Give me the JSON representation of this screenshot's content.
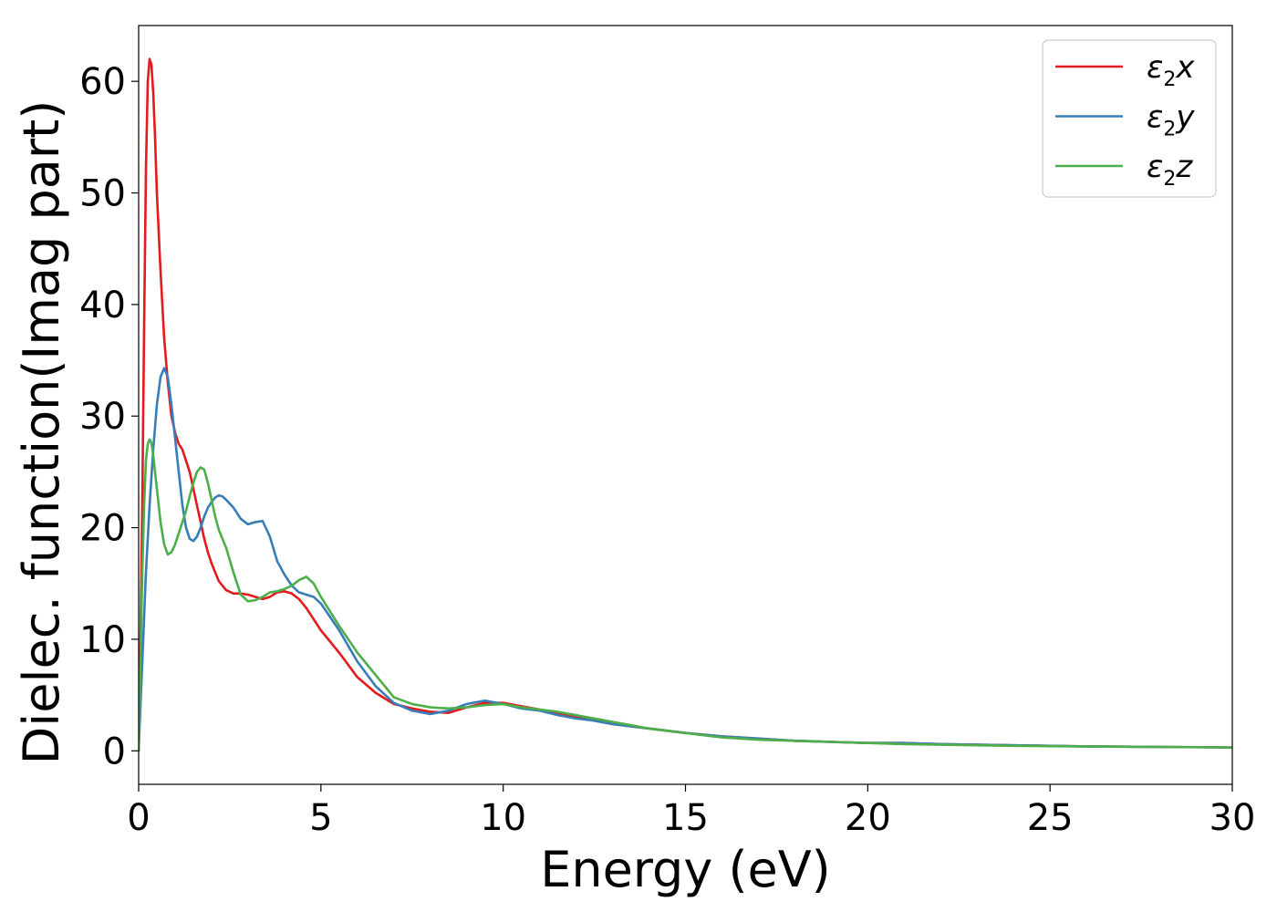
{
  "chart_data": {
    "type": "line",
    "title": "",
    "xlabel": "Energy (eV)",
    "ylabel": "Dielec. function(Imag part)",
    "xlim": [
      0,
      30
    ],
    "ylim": [
      -3,
      65
    ],
    "xticks": [
      0,
      5,
      10,
      15,
      20,
      25,
      30
    ],
    "yticks": [
      0,
      10,
      20,
      30,
      40,
      50,
      60
    ],
    "grid": false,
    "legend_position": "top-right",
    "series": [
      {
        "name": "ε2x",
        "legend_base": "ε",
        "legend_sub": "2",
        "legend_var": "x",
        "color": "#e41a1c",
        "x": [
          0.0,
          0.05,
          0.1,
          0.15,
          0.2,
          0.25,
          0.3,
          0.35,
          0.4,
          0.45,
          0.5,
          0.6,
          0.7,
          0.8,
          0.9,
          1.0,
          1.1,
          1.2,
          1.3,
          1.4,
          1.5,
          1.6,
          1.7,
          1.8,
          1.9,
          2.0,
          2.2,
          2.4,
          2.6,
          2.8,
          3.0,
          3.2,
          3.4,
          3.6,
          3.8,
          4.0,
          4.2,
          4.4,
          4.6,
          4.8,
          5.0,
          5.5,
          6.0,
          6.5,
          7.0,
          7.5,
          8.0,
          8.5,
          9.0,
          9.5,
          10.0,
          10.5,
          11.0,
          11.5,
          12.0,
          12.5,
          13.0,
          14.0,
          15.0,
          16.0,
          17.0,
          18.0,
          19.0,
          20.0,
          21.0,
          22.0,
          23.0,
          24.0,
          25.0,
          26.0,
          27.0,
          28.0,
          29.0,
          30.0
        ],
        "values": [
          0,
          10,
          22,
          38,
          52,
          60,
          62,
          61.5,
          59,
          55,
          50,
          43,
          37,
          33,
          30,
          28.5,
          27.5,
          27,
          26,
          25,
          23.5,
          22,
          20.5,
          19,
          17.8,
          16.8,
          15.2,
          14.4,
          14.1,
          14.1,
          14.0,
          13.8,
          13.6,
          13.8,
          14.2,
          14.3,
          14.1,
          13.6,
          12.8,
          11.8,
          10.8,
          8.8,
          6.6,
          5.2,
          4.2,
          3.8,
          3.5,
          3.4,
          3.9,
          4.3,
          4.3,
          4.0,
          3.7,
          3.3,
          3.0,
          2.7,
          2.4,
          2.0,
          1.6,
          1.3,
          1.1,
          0.9,
          0.8,
          0.7,
          0.7,
          0.6,
          0.55,
          0.5,
          0.45,
          0.4,
          0.38,
          0.35,
          0.33,
          0.3
        ]
      },
      {
        "name": "ε2y",
        "legend_base": "ε",
        "legend_sub": "2",
        "legend_var": "y",
        "color": "#377eb8",
        "x": [
          0.0,
          0.1,
          0.2,
          0.3,
          0.4,
          0.5,
          0.6,
          0.7,
          0.8,
          0.9,
          1.0,
          1.1,
          1.2,
          1.3,
          1.4,
          1.5,
          1.6,
          1.7,
          1.8,
          1.9,
          2.0,
          2.1,
          2.2,
          2.3,
          2.4,
          2.6,
          2.8,
          3.0,
          3.2,
          3.4,
          3.6,
          3.8,
          4.0,
          4.2,
          4.4,
          4.6,
          4.8,
          5.0,
          5.5,
          6.0,
          6.5,
          7.0,
          7.5,
          8.0,
          8.5,
          9.0,
          9.5,
          10.0,
          10.5,
          11.0,
          11.5,
          12.0,
          12.5,
          13.0,
          14.0,
          15.0,
          16.0,
          17.0,
          18.0,
          19.0,
          20.0,
          21.0,
          22.0,
          23.0,
          24.0,
          25.0,
          26.0,
          27.0,
          28.0,
          29.0,
          30.0
        ],
        "values": [
          0,
          8,
          16,
          22,
          27,
          31,
          33.5,
          34.3,
          33.5,
          31,
          28,
          25,
          22,
          20,
          19,
          18.8,
          19.2,
          20,
          21,
          21.8,
          22.3,
          22.7,
          22.9,
          22.8,
          22.5,
          21.8,
          20.8,
          20.3,
          20.5,
          20.6,
          19.2,
          17,
          15.8,
          14.8,
          14.2,
          14.0,
          13.8,
          13.2,
          10.8,
          8.0,
          5.8,
          4.3,
          3.6,
          3.3,
          3.6,
          4.2,
          4.5,
          4.2,
          3.8,
          3.6,
          3.2,
          2.9,
          2.7,
          2.4,
          2.0,
          1.6,
          1.3,
          1.1,
          0.9,
          0.8,
          0.7,
          0.7,
          0.6,
          0.55,
          0.5,
          0.45,
          0.4,
          0.38,
          0.35,
          0.33,
          0.3
        ]
      },
      {
        "name": "ε2z",
        "legend_base": "ε",
        "legend_sub": "2",
        "legend_var": "z",
        "color": "#4daf4a",
        "x": [
          0.0,
          0.05,
          0.1,
          0.15,
          0.2,
          0.25,
          0.3,
          0.35,
          0.4,
          0.5,
          0.6,
          0.7,
          0.8,
          0.9,
          1.0,
          1.1,
          1.2,
          1.3,
          1.4,
          1.5,
          1.6,
          1.7,
          1.8,
          1.9,
          2.0,
          2.1,
          2.2,
          2.4,
          2.6,
          2.8,
          3.0,
          3.2,
          3.4,
          3.6,
          3.8,
          4.0,
          4.2,
          4.4,
          4.6,
          4.8,
          5.0,
          5.5,
          6.0,
          6.5,
          7.0,
          7.5,
          8.0,
          8.5,
          9.0,
          9.5,
          10.0,
          10.5,
          11.0,
          11.5,
          12.0,
          12.5,
          13.0,
          14.0,
          15.0,
          16.0,
          17.0,
          18.0,
          19.0,
          20.0,
          21.0,
          22.0,
          23.0,
          24.0,
          25.0,
          26.0,
          27.0,
          28.0,
          29.0,
          30.0
        ],
        "values": [
          0,
          8,
          16,
          22,
          26,
          27.5,
          27.9,
          27.6,
          26.5,
          23.5,
          20.5,
          18.5,
          17.6,
          17.8,
          18.5,
          19.5,
          20.5,
          21.5,
          22.8,
          24,
          25,
          25.4,
          25.2,
          24,
          22.5,
          21,
          19.8,
          18.2,
          16,
          14,
          13.4,
          13.5,
          13.8,
          14.2,
          14.3,
          14.5,
          14.8,
          15.3,
          15.6,
          15.0,
          13.8,
          11.2,
          8.8,
          6.8,
          4.8,
          4.2,
          3.9,
          3.8,
          3.9,
          4.1,
          4.2,
          3.9,
          3.7,
          3.5,
          3.2,
          2.9,
          2.6,
          2.0,
          1.6,
          1.2,
          1.0,
          0.9,
          0.8,
          0.7,
          0.6,
          0.55,
          0.5,
          0.45,
          0.42,
          0.4,
          0.37,
          0.35,
          0.32,
          0.3
        ]
      }
    ]
  }
}
